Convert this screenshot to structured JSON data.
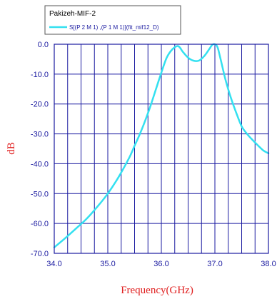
{
  "chart_data": {
    "type": "line",
    "title": "Pakizeh-MIF-2",
    "xlabel": "Frequency(GHz)",
    "ylabel": "dB",
    "xlim": [
      34.0,
      38.0
    ],
    "ylim": [
      -70.0,
      0.0
    ],
    "x_ticks": [
      "34.0",
      "35.0",
      "36.0",
      "37.0",
      "38.0"
    ],
    "y_ticks": [
      "0.0",
      "-10.0",
      "-20.0",
      "-30.0",
      "-40.0",
      "-50.0",
      "-60.0",
      "-70.0"
    ],
    "grid": true,
    "legend_position": "top-left",
    "colors": {
      "series": "#33e0f0",
      "grid": "#1a1aa0",
      "axis_title": "#e02020",
      "tick": "#1a1aa0"
    },
    "series": [
      {
        "name": "S[(P 2 M 1) ,(P 1 M 1)](fit_mif12_D)",
        "x": [
          34.0,
          34.2,
          34.4,
          34.6,
          34.8,
          35.0,
          35.2,
          35.4,
          35.5,
          35.6,
          35.7,
          35.8,
          35.9,
          36.0,
          36.1,
          36.2,
          36.3,
          36.35,
          36.4,
          36.5,
          36.6,
          36.7,
          36.8,
          36.9,
          36.95,
          37.0,
          37.05,
          37.1,
          37.2,
          37.3,
          37.4,
          37.5,
          37.6,
          37.7,
          37.8,
          37.9,
          38.0
        ],
        "y": [
          -68.0,
          -65.0,
          -61.8,
          -58.5,
          -54.5,
          -50.0,
          -44.5,
          -38.0,
          -34.0,
          -30.0,
          -25.5,
          -20.5,
          -15.0,
          -9.5,
          -4.5,
          -1.8,
          -0.6,
          -1.2,
          -2.5,
          -4.5,
          -5.5,
          -5.5,
          -4.0,
          -1.5,
          -0.2,
          0.0,
          -1.0,
          -4.5,
          -12.0,
          -18.0,
          -23.0,
          -27.5,
          -30.0,
          -32.0,
          -33.8,
          -35.5,
          -36.5
        ]
      }
    ]
  }
}
